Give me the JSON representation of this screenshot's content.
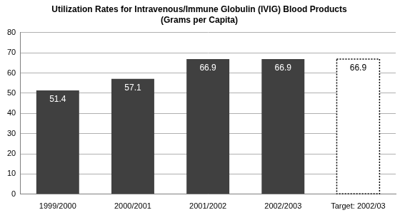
{
  "chart_data": {
    "type": "bar",
    "title": "Utilization Rates for Intravenous/Immune Globulin (IVIG) Blood Products",
    "subtitle": "(Grams per Capita)",
    "categories": [
      "1999/2000",
      "2000/2001",
      "2001/2002",
      "2002/2003",
      "Target: 2002/03"
    ],
    "series": [
      {
        "values": [
          51.4,
          57.1,
          66.9,
          66.9,
          null
        ],
        "color": "#404040"
      },
      {
        "values": [
          null,
          null,
          null,
          null,
          66.9
        ],
        "color": "#ffffff",
        "line_style": "dotted"
      }
    ],
    "ylim": [
      0,
      80
    ],
    "yticks": [
      0,
      10,
      20,
      30,
      40,
      50,
      60,
      70,
      80
    ],
    "grid": true,
    "data_labels": true
  }
}
